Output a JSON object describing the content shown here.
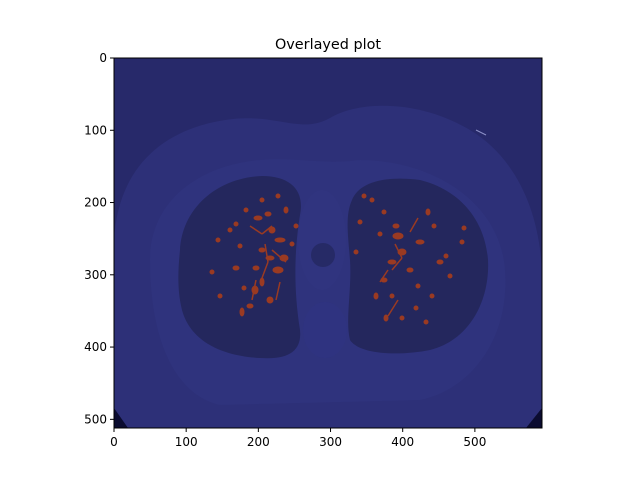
{
  "chart_data": {
    "type": "heatmap",
    "title": "Overlayed plot",
    "xlabel": "",
    "ylabel": "",
    "xlim": [
      0,
      593
    ],
    "ylim": [
      512,
      0
    ],
    "xticks": [
      0,
      100,
      200,
      300,
      400,
      500
    ],
    "yticks": [
      0,
      100,
      200,
      300,
      400,
      500
    ],
    "grid": false,
    "image": {
      "content": "axial chest CT slice (lungs, mediastinum, spine) overlaid with a segmentation mask of pulmonary vessels",
      "base_colormap": "dark navy blue",
      "overlay_color": "#9a3a22"
    }
  },
  "colors": {
    "background": "#27296a",
    "body": "#2d3078",
    "lung": "#24275d",
    "vessel": "#9a3a22"
  }
}
